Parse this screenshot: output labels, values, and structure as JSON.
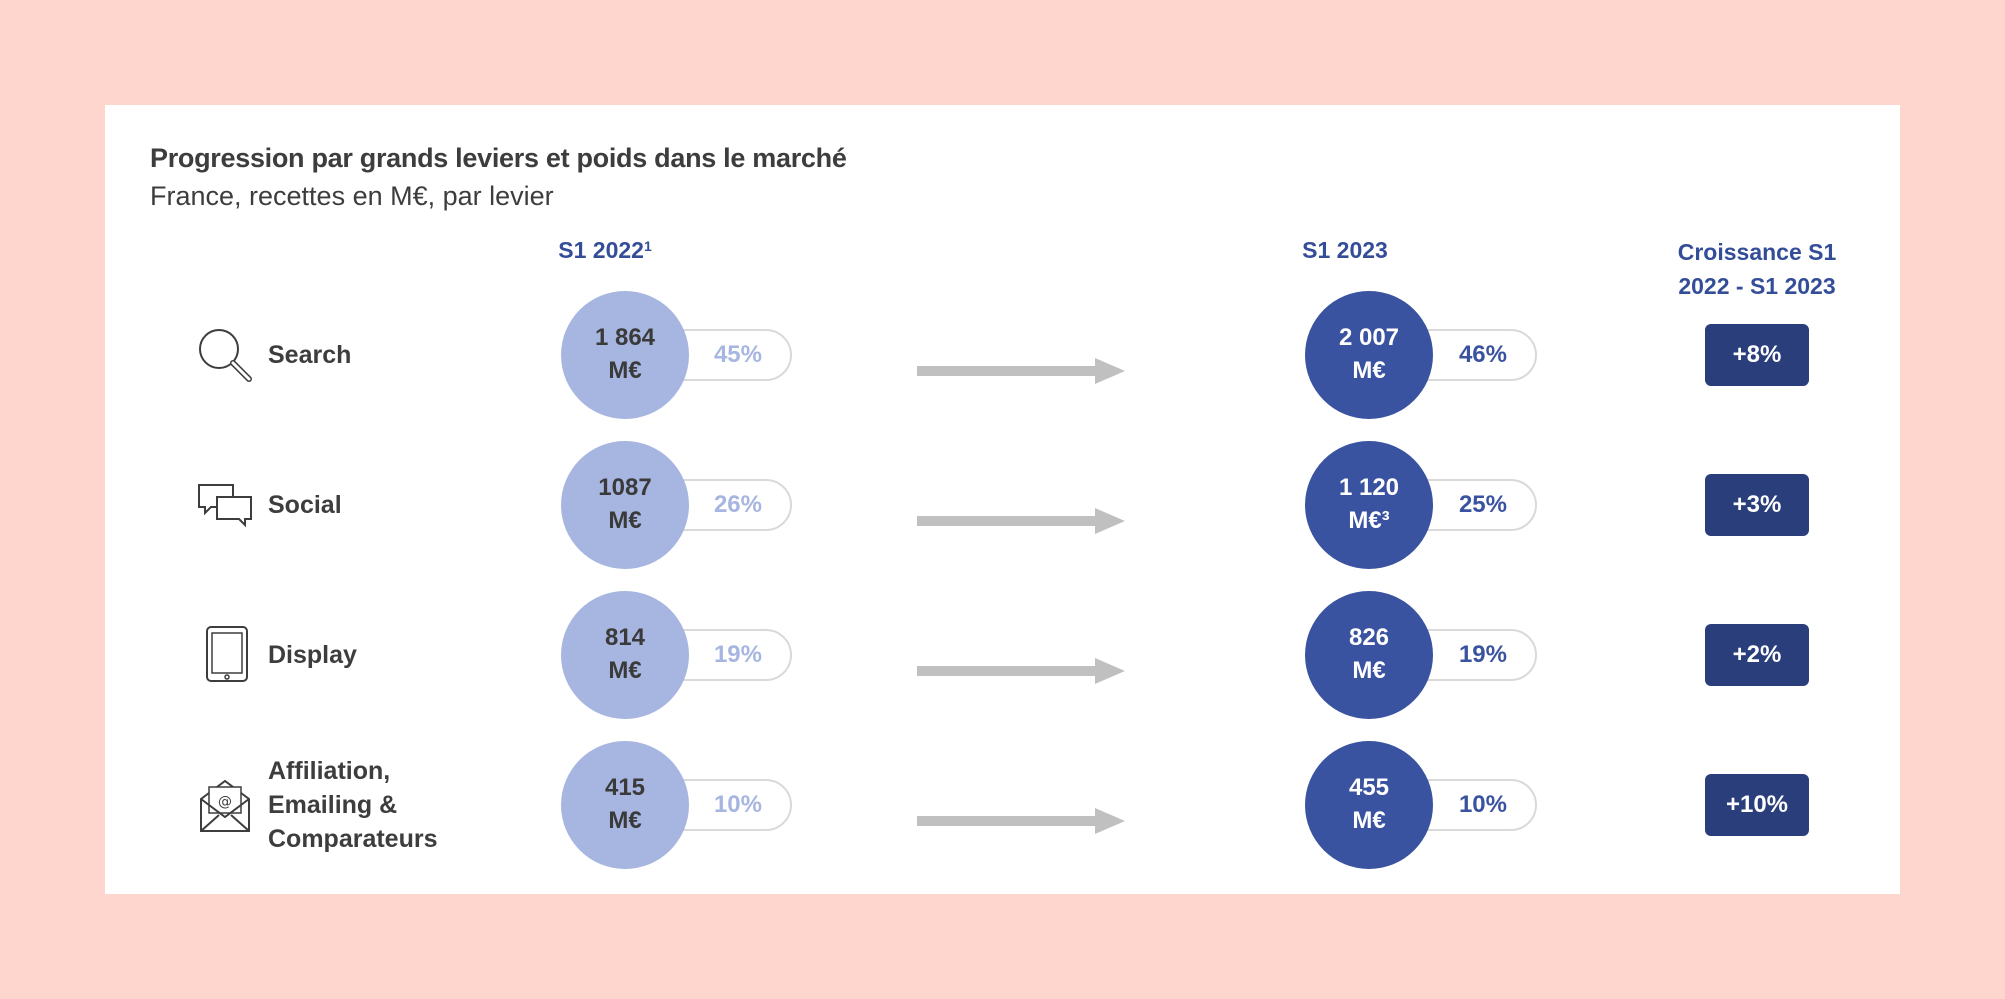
{
  "chart_data": {
    "type": "table",
    "title": "Progression par grands leviers et poids dans le marché",
    "subtitle": "France, recettes en M€, par levier",
    "columns": {
      "s1_2022": "S1 2022",
      "s1_2022_note": "1",
      "s1_2023": "S1 2023",
      "growth_line1": "Croissance S1",
      "growth_line2": "2022 - S1 2023"
    },
    "rows": [
      {
        "levier": [
          "Search"
        ],
        "icon": "search-icon",
        "v2022": "1 864",
        "u2022": "M€",
        "share2022": "45%",
        "v2023": "2 007",
        "u2023": "M€",
        "share2023": "46%",
        "growth": "+8%"
      },
      {
        "levier": [
          "Social"
        ],
        "icon": "chat-bubbles-icon",
        "v2022": "1087",
        "u2022": "M€",
        "share2022": "26%",
        "v2023": "1 120",
        "u2023": "M€³",
        "share2023": "25%",
        "growth": "+3%"
      },
      {
        "levier": [
          "Display"
        ],
        "icon": "tablet-icon",
        "v2022": "814",
        "u2022": "M€",
        "share2022": "19%",
        "v2023": "826",
        "u2023": "M€",
        "share2023": "19%",
        "growth": "+2%"
      },
      {
        "levier": [
          "Affiliation,",
          "Emailing &",
          "Comparateurs"
        ],
        "icon": "email-icon",
        "v2022": "415",
        "u2022": "M€",
        "share2022": "10%",
        "v2023": "455",
        "u2023": "M€",
        "share2023": "10%",
        "growth": "+10%"
      }
    ]
  },
  "colors": {
    "s1_2022": "#a7b6e0",
    "s1_2023": "#3a53a0",
    "growth_badge": "#2b3e7c",
    "arrow": "#c0c0c0"
  }
}
